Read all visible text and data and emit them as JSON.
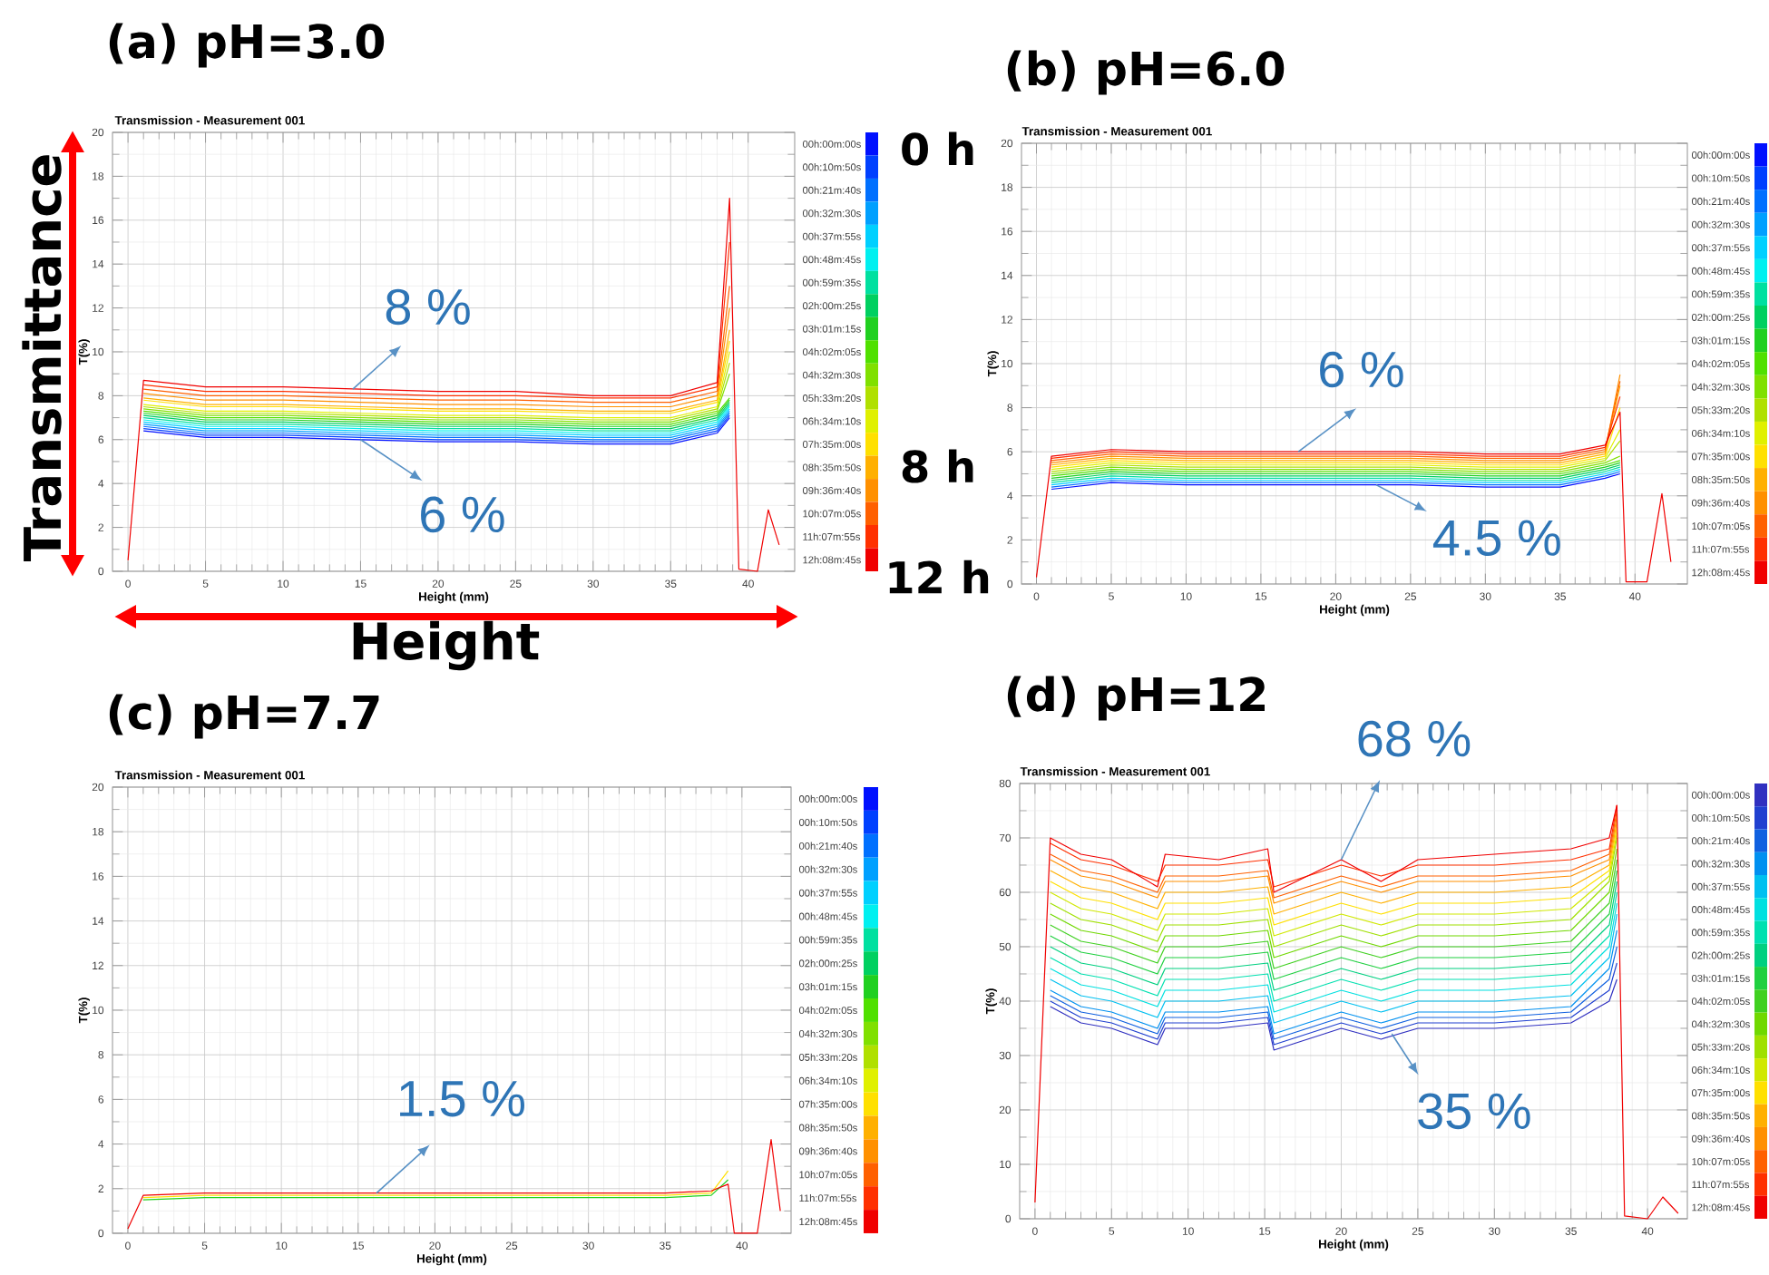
{
  "chart_data": [
    {
      "type": "line",
      "title": "(a) pH=3.0",
      "subtitle": "Transmission - Measurement 001",
      "xlabel": "Height (mm)",
      "ylabel": "T(%)",
      "xlim": [
        -1,
        43
      ],
      "ylim": [
        0,
        20
      ],
      "xticks": [
        0,
        5,
        10,
        15,
        20,
        25,
        30,
        35,
        40
      ],
      "yticks": [
        0,
        2,
        4,
        6,
        8,
        10,
        12,
        14,
        16,
        18,
        20
      ],
      "grid": true,
      "legend": "right",
      "x": [
        0,
        1,
        5,
        10,
        15,
        20,
        25,
        30,
        35,
        38,
        38.8,
        39.4,
        40.6,
        41.3,
        42
      ],
      "annotations": [
        "Transmittance",
        "Height",
        "0 h",
        "8 h",
        "12 h",
        {
          "text": "8 %",
          "x": 14.5,
          "y": 8.3
        },
        {
          "text": "6 %",
          "x": 15,
          "y": 6.0
        }
      ],
      "series": [
        {
          "name": "00h:00m:00s",
          "color": "#0010ff",
          "values": [
            null,
            6.4,
            6.1,
            6.1,
            6.0,
            5.9,
            5.9,
            5.8,
            5.8,
            6.3,
            7.0,
            null,
            null,
            null,
            null
          ]
        },
        {
          "name": "00h:10m:50s",
          "color": "#0040ff",
          "values": [
            null,
            6.5,
            6.2,
            6.2,
            6.1,
            6.0,
            6.0,
            5.9,
            5.9,
            6.4,
            7.1,
            null,
            null,
            null,
            null
          ]
        },
        {
          "name": "00h:21m:40s",
          "color": "#0070ff",
          "values": [
            null,
            6.6,
            6.3,
            6.3,
            6.2,
            6.1,
            6.1,
            6.0,
            6.0,
            6.5,
            7.2,
            null,
            null,
            null,
            null
          ]
        },
        {
          "name": "00h:32m:30s",
          "color": "#00a0ff",
          "values": [
            null,
            6.7,
            6.4,
            6.4,
            6.3,
            6.2,
            6.2,
            6.1,
            6.1,
            6.6,
            7.3,
            null,
            null,
            null,
            null
          ]
        },
        {
          "name": "00h:37m:55s",
          "color": "#00d0ff",
          "values": [
            null,
            6.8,
            6.5,
            6.5,
            6.4,
            6.3,
            6.3,
            6.2,
            6.2,
            6.7,
            7.4,
            null,
            null,
            null,
            null
          ]
        },
        {
          "name": "00h:48m:45s",
          "color": "#00f0f0",
          "values": [
            null,
            6.9,
            6.6,
            6.6,
            6.5,
            6.4,
            6.4,
            6.3,
            6.3,
            6.8,
            7.5,
            null,
            null,
            null,
            null
          ]
        },
        {
          "name": "00h:59m:35s",
          "color": "#00e0a0",
          "values": [
            null,
            7.0,
            6.7,
            6.7,
            6.6,
            6.5,
            6.5,
            6.4,
            6.4,
            6.9,
            7.6,
            null,
            null,
            null,
            null
          ]
        },
        {
          "name": "02h:00m:25s",
          "color": "#00d060",
          "values": [
            null,
            7.1,
            6.8,
            6.8,
            6.7,
            6.6,
            6.6,
            6.5,
            6.5,
            7.0,
            7.7,
            null,
            null,
            null,
            null
          ]
        },
        {
          "name": "03h:01m:15s",
          "color": "#20d020",
          "values": [
            null,
            7.2,
            6.9,
            6.9,
            6.8,
            6.7,
            6.7,
            6.6,
            6.6,
            7.1,
            7.8,
            null,
            null,
            null,
            null
          ]
        },
        {
          "name": "04h:02m:05s",
          "color": "#50e000",
          "values": [
            null,
            7.3,
            7.0,
            7.0,
            6.9,
            6.8,
            6.8,
            6.7,
            6.7,
            7.2,
            7.9,
            null,
            null,
            null,
            null
          ]
        },
        {
          "name": "04h:32m:30s",
          "color": "#80e000",
          "values": [
            null,
            7.4,
            7.1,
            7.1,
            7.0,
            6.9,
            6.9,
            6.8,
            6.8,
            7.3,
            9.0,
            null,
            null,
            null,
            null
          ]
        },
        {
          "name": "05h:33m:20s",
          "color": "#b0e000",
          "values": [
            null,
            7.5,
            7.2,
            7.2,
            7.1,
            7.0,
            7.0,
            6.9,
            6.9,
            7.4,
            9.5,
            null,
            null,
            null,
            null
          ]
        },
        {
          "name": "06h:34m:10s",
          "color": "#e0f000",
          "values": [
            null,
            7.6,
            7.3,
            7.3,
            7.2,
            7.1,
            7.1,
            7.0,
            7.0,
            7.5,
            10.0,
            null,
            null,
            null,
            null
          ]
        },
        {
          "name": "07h:35m:00s",
          "color": "#ffe000",
          "values": [
            null,
            7.8,
            7.5,
            7.5,
            7.4,
            7.3,
            7.3,
            7.2,
            7.2,
            7.7,
            10.5,
            null,
            null,
            null,
            null
          ]
        },
        {
          "name": "08h:35m:50s",
          "color": "#ffb000",
          "values": [
            null,
            7.9,
            7.6,
            7.6,
            7.5,
            7.4,
            7.4,
            7.3,
            7.3,
            7.8,
            11.0,
            null,
            null,
            null,
            null
          ]
        },
        {
          "name": "09h:36m:40s",
          "color": "#ff9000",
          "values": [
            null,
            8.1,
            7.8,
            7.8,
            7.7,
            7.6,
            7.6,
            7.5,
            7.5,
            8.0,
            12.0,
            null,
            null,
            null,
            null
          ]
        },
        {
          "name": "10h:07m:05s",
          "color": "#ff6000",
          "values": [
            null,
            8.3,
            8.0,
            8.0,
            7.9,
            7.8,
            7.8,
            7.7,
            7.7,
            8.2,
            13.0,
            null,
            null,
            null,
            null
          ]
        },
        {
          "name": "11h:07m:55s",
          "color": "#ff3000",
          "values": [
            null,
            8.5,
            8.2,
            8.2,
            8.1,
            8.0,
            8.0,
            7.9,
            7.9,
            8.4,
            15.0,
            null,
            null,
            null,
            null
          ]
        },
        {
          "name": "12h:08m:45s",
          "color": "#f00000",
          "values": [
            0.5,
            8.7,
            8.4,
            8.4,
            8.3,
            8.2,
            8.2,
            8.0,
            8.0,
            8.6,
            17.0,
            0.1,
            0,
            2.8,
            1.2
          ]
        }
      ]
    },
    {
      "type": "line",
      "title": "(b) pH=6.0",
      "subtitle": "Transmission - Measurement 001",
      "xlabel": "Height (mm)",
      "ylabel": "T(%)",
      "xlim": [
        -1,
        43.5
      ],
      "ylim": [
        0,
        20
      ],
      "xticks": [
        0,
        5,
        10,
        15,
        20,
        25,
        30,
        35,
        40
      ],
      "yticks": [
        0,
        2,
        4,
        6,
        8,
        10,
        12,
        14,
        16,
        18,
        20
      ],
      "grid": true,
      "legend": "right",
      "x": [
        0,
        1,
        5,
        10,
        15,
        20,
        25,
        30,
        35,
        38,
        39,
        39.4,
        40.8,
        41.8,
        42.4
      ],
      "annotations": [
        {
          "text": "6 %",
          "x": 17.5,
          "y": 6.0
        },
        {
          "text": "4.5 %",
          "x": 22.7,
          "y": 4.5
        }
      ],
      "series": [
        {
          "name": "00h:00m:00s",
          "color": "#0010ff",
          "values": [
            null,
            4.3,
            4.6,
            4.5,
            4.5,
            4.5,
            4.5,
            4.4,
            4.4,
            4.8,
            5.0,
            null,
            null,
            null,
            null
          ]
        },
        {
          "name": "00h:10m:50s",
          "color": "#0040ff",
          "values": [
            null,
            null,
            null,
            null,
            null,
            null,
            null,
            null,
            null,
            null,
            null,
            null,
            null,
            null,
            null
          ]
        },
        {
          "name": "00h:21m:40s",
          "color": "#0070ff",
          "values": [
            null,
            4.4,
            4.7,
            4.6,
            4.6,
            4.6,
            4.6,
            4.5,
            4.5,
            4.9,
            5.1,
            null,
            null,
            null,
            null
          ]
        },
        {
          "name": "00h:32m:30s",
          "color": "#00a0ff",
          "values": [
            null,
            null,
            null,
            null,
            null,
            null,
            null,
            null,
            null,
            null,
            null,
            null,
            null,
            null,
            null
          ]
        },
        {
          "name": "00h:37m:55s",
          "color": "#00d0ff",
          "values": [
            null,
            4.5,
            4.8,
            4.7,
            4.7,
            4.7,
            4.7,
            4.6,
            4.6,
            5.0,
            5.2,
            null,
            null,
            null,
            null
          ]
        },
        {
          "name": "00h:48m:45s",
          "color": "#00f0f0",
          "values": [
            null,
            null,
            null,
            null,
            null,
            null,
            null,
            null,
            null,
            null,
            null,
            null,
            null,
            null,
            null
          ]
        },
        {
          "name": "00h:59m:35s",
          "color": "#00e0a0",
          "values": [
            null,
            4.6,
            4.9,
            4.8,
            4.8,
            4.8,
            4.8,
            4.7,
            4.7,
            5.1,
            5.3,
            null,
            null,
            null,
            null
          ]
        },
        {
          "name": "02h:00m:25s",
          "color": "#00d060",
          "values": [
            null,
            4.7,
            5.0,
            4.9,
            4.9,
            4.9,
            4.9,
            4.8,
            4.8,
            5.2,
            5.4,
            null,
            null,
            null,
            null
          ]
        },
        {
          "name": "03h:01m:15s",
          "color": "#20d020",
          "values": [
            null,
            4.8,
            5.1,
            5.0,
            5.0,
            5.0,
            5.0,
            4.9,
            4.9,
            5.3,
            5.5,
            null,
            null,
            null,
            null
          ]
        },
        {
          "name": "04h:02m:05s",
          "color": "#50e000",
          "values": [
            null,
            4.9,
            5.2,
            5.1,
            5.1,
            5.1,
            5.1,
            5.0,
            5.0,
            5.4,
            5.6,
            null,
            null,
            null,
            null
          ]
        },
        {
          "name": "04h:32m:30s",
          "color": "#80e000",
          "values": [
            null,
            5.0,
            5.3,
            5.2,
            5.2,
            5.2,
            5.2,
            5.1,
            5.1,
            5.5,
            5.8,
            null,
            null,
            null,
            null
          ]
        },
        {
          "name": "05h:33m:20s",
          "color": "#b0e000",
          "values": [
            null,
            5.1,
            5.4,
            5.3,
            5.3,
            5.3,
            5.3,
            5.2,
            5.2,
            5.6,
            6.5,
            null,
            null,
            null,
            null
          ]
        },
        {
          "name": "06h:34m:10s",
          "color": "#e0f000",
          "values": [
            null,
            5.2,
            5.5,
            5.4,
            5.4,
            5.4,
            5.4,
            5.3,
            5.3,
            5.7,
            7.0,
            null,
            null,
            null,
            null
          ]
        },
        {
          "name": "07h:35m:00s",
          "color": "#ffe000",
          "values": [
            null,
            5.3,
            5.6,
            5.5,
            5.5,
            5.5,
            5.5,
            5.4,
            5.4,
            5.8,
            8.0,
            null,
            null,
            null,
            null
          ]
        },
        {
          "name": "08h:35m:50s",
          "color": "#ffb000",
          "values": [
            null,
            5.4,
            5.7,
            5.6,
            5.6,
            5.6,
            5.6,
            5.5,
            5.5,
            5.9,
            9.0,
            null,
            null,
            null,
            null
          ]
        },
        {
          "name": "09h:36m:40s",
          "color": "#ff9000",
          "values": [
            null,
            5.5,
            5.8,
            5.7,
            5.7,
            5.7,
            5.7,
            5.6,
            5.6,
            6.0,
            9.5,
            null,
            null,
            null,
            null
          ]
        },
        {
          "name": "10h:07m:05s",
          "color": "#ff6000",
          "values": [
            null,
            5.6,
            5.9,
            5.8,
            5.8,
            5.8,
            5.8,
            5.7,
            5.7,
            6.1,
            9.2,
            null,
            null,
            null,
            null
          ]
        },
        {
          "name": "11h:07m:55s",
          "color": "#ff3000",
          "values": [
            null,
            5.7,
            6.0,
            5.9,
            5.9,
            5.9,
            5.9,
            5.8,
            5.8,
            6.2,
            8.5,
            null,
            null,
            null,
            null
          ]
        },
        {
          "name": "12h:08m:45s",
          "color": "#f00000",
          "values": [
            0.3,
            5.8,
            6.1,
            6.0,
            6.0,
            6.0,
            6.0,
            5.9,
            5.9,
            6.3,
            7.8,
            0.1,
            0.1,
            4.1,
            1.0
          ]
        }
      ]
    },
    {
      "type": "line",
      "title": "(c) pH=7.7",
      "subtitle": "Transmission - Measurement 001",
      "xlabel": "Height (mm)",
      "ylabel": "T(%)",
      "xlim": [
        -1,
        43.2
      ],
      "ylim": [
        0,
        20
      ],
      "xticks": [
        0,
        5,
        10,
        15,
        20,
        25,
        30,
        35,
        40
      ],
      "yticks": [
        0,
        2,
        4,
        6,
        8,
        10,
        12,
        14,
        16,
        18,
        20
      ],
      "grid": true,
      "legend": "right",
      "x": [
        0,
        1,
        5,
        10,
        15,
        20,
        25,
        30,
        35,
        38,
        39.1,
        39.5,
        41,
        41.9,
        42.5
      ],
      "annotations": [
        {
          "text": "1.5 %",
          "x": 16.2,
          "y": 1.8
        }
      ],
      "series": [
        {
          "name": "00h:00m:00s",
          "color": "#0010ff",
          "values": [
            null,
            null,
            null,
            null,
            null,
            null,
            null,
            null,
            null,
            null,
            null,
            null,
            null,
            null,
            null
          ]
        },
        {
          "name": "00h:10m:50s",
          "color": "#0040ff",
          "values": [
            null,
            null,
            null,
            null,
            null,
            null,
            null,
            null,
            null,
            null,
            null,
            null,
            null,
            null,
            null
          ]
        },
        {
          "name": "00h:21m:40s",
          "color": "#0070ff",
          "values": [
            null,
            null,
            null,
            null,
            null,
            null,
            null,
            null,
            null,
            null,
            null,
            null,
            null,
            null,
            null
          ]
        },
        {
          "name": "00h:32m:30s",
          "color": "#00a0ff",
          "values": [
            null,
            null,
            null,
            null,
            null,
            null,
            null,
            null,
            null,
            null,
            null,
            null,
            null,
            null,
            null
          ]
        },
        {
          "name": "00h:37m:55s",
          "color": "#00d0ff",
          "values": [
            null,
            null,
            null,
            null,
            null,
            null,
            null,
            null,
            null,
            null,
            null,
            null,
            null,
            null,
            null
          ]
        },
        {
          "name": "00h:48m:45s",
          "color": "#00f0f0",
          "values": [
            null,
            null,
            null,
            null,
            null,
            null,
            null,
            null,
            null,
            null,
            null,
            null,
            null,
            null,
            null
          ]
        },
        {
          "name": "00h:59m:35s",
          "color": "#00e0a0",
          "values": [
            null,
            null,
            null,
            null,
            null,
            null,
            null,
            null,
            null,
            null,
            null,
            null,
            null,
            null,
            null
          ]
        },
        {
          "name": "02h:00m:25s",
          "color": "#00d060",
          "values": [
            null,
            null,
            null,
            null,
            null,
            null,
            null,
            null,
            null,
            null,
            null,
            null,
            null,
            null,
            null
          ]
        },
        {
          "name": "03h:01m:15s",
          "color": "#20d020",
          "values": [
            null,
            1.5,
            1.6,
            1.6,
            1.6,
            1.6,
            1.6,
            1.6,
            1.6,
            1.7,
            2.4,
            null,
            null,
            null,
            null
          ]
        },
        {
          "name": "04h:02m:05s",
          "color": "#50e000",
          "values": [
            null,
            null,
            null,
            null,
            null,
            null,
            null,
            null,
            null,
            null,
            null,
            null,
            null,
            null,
            null
          ]
        },
        {
          "name": "04h:32m:30s",
          "color": "#80e000",
          "values": [
            null,
            null,
            null,
            null,
            null,
            null,
            null,
            null,
            null,
            null,
            null,
            null,
            null,
            null,
            null
          ]
        },
        {
          "name": "05h:33m:20s",
          "color": "#b0e000",
          "values": [
            null,
            null,
            null,
            null,
            null,
            null,
            null,
            null,
            null,
            null,
            null,
            null,
            null,
            null,
            null
          ]
        },
        {
          "name": "06h:34m:10s",
          "color": "#e0f000",
          "values": [
            null,
            null,
            null,
            null,
            null,
            null,
            null,
            null,
            null,
            null,
            null,
            null,
            null,
            null,
            null
          ]
        },
        {
          "name": "07h:35m:00s",
          "color": "#ffe000",
          "values": [
            null,
            1.6,
            1.7,
            1.7,
            1.7,
            1.7,
            1.7,
            1.7,
            1.7,
            1.8,
            2.8,
            null,
            null,
            null,
            null
          ]
        },
        {
          "name": "08h:35m:50s",
          "color": "#ffb000",
          "values": [
            null,
            null,
            null,
            null,
            null,
            null,
            null,
            null,
            null,
            null,
            null,
            null,
            null,
            null,
            null
          ]
        },
        {
          "name": "09h:36m:40s",
          "color": "#ff9000",
          "values": [
            null,
            null,
            null,
            null,
            null,
            null,
            null,
            null,
            null,
            null,
            null,
            null,
            null,
            null,
            null
          ]
        },
        {
          "name": "10h:07m:05s",
          "color": "#ff6000",
          "values": [
            null,
            null,
            null,
            null,
            null,
            null,
            null,
            null,
            null,
            null,
            null,
            null,
            null,
            null,
            null
          ]
        },
        {
          "name": "11h:07m:55s",
          "color": "#ff3000",
          "values": [
            null,
            null,
            null,
            null,
            null,
            null,
            null,
            null,
            null,
            null,
            null,
            null,
            null,
            null,
            null
          ]
        },
        {
          "name": "12h:08m:45s",
          "color": "#f00000",
          "values": [
            0.2,
            1.7,
            1.8,
            1.8,
            1.8,
            1.8,
            1.8,
            1.8,
            1.8,
            1.9,
            2.2,
            0,
            0,
            4.2,
            1.0
          ]
        }
      ]
    },
    {
      "type": "line",
      "title": "(d) pH=12",
      "subtitle": "Transmission - Measurement 001",
      "xlabel": "Height (mm)",
      "ylabel": "T(%)",
      "xlim": [
        -1,
        42.6
      ],
      "ylim": [
        0,
        80
      ],
      "xticks": [
        0,
        5,
        10,
        15,
        20,
        25,
        30,
        35,
        40
      ],
      "yticks": [
        0,
        10,
        20,
        30,
        40,
        50,
        60,
        70,
        80
      ],
      "grid": true,
      "legend": "right",
      "x": [
        0,
        1,
        3,
        5,
        8,
        8.5,
        12,
        15.2,
        15.6,
        20,
        22.6,
        25,
        30,
        35,
        37.5,
        38,
        38.5,
        40,
        41,
        42
      ],
      "annotations": [
        {
          "text": "68 %",
          "x": 20,
          "y": 66
        },
        {
          "text": "35 %",
          "x": 23.3,
          "y": 34
        }
      ],
      "series": [
        {
          "name": "00h:00m:00s",
          "color": "#3030c0",
          "values": [
            null,
            39,
            36,
            35,
            32,
            35,
            35,
            36,
            31,
            35,
            33,
            35,
            35,
            36,
            40,
            44,
            null,
            null,
            null,
            null
          ]
        },
        {
          "name": "00h:10m:50s",
          "color": "#2040d0",
          "values": [
            null,
            40,
            37,
            36,
            33,
            36,
            36,
            37,
            32,
            36,
            34,
            36,
            36,
            37,
            42,
            47,
            null,
            null,
            null,
            null
          ]
        },
        {
          "name": "00h:21m:40s",
          "color": "#1060e0",
          "values": [
            null,
            41,
            38,
            37,
            34,
            37,
            37,
            38,
            33,
            37,
            35,
            37,
            37,
            38,
            44,
            50,
            null,
            null,
            null,
            null
          ]
        },
        {
          "name": "00h:32m:30s",
          "color": "#0090f0",
          "values": [
            null,
            42,
            39,
            38,
            35,
            38,
            38,
            39,
            34,
            38,
            36,
            38,
            38,
            39,
            46,
            53,
            null,
            null,
            null,
            null
          ]
        },
        {
          "name": "00h:37m:55s",
          "color": "#00c0f0",
          "values": [
            null,
            44,
            41,
            40,
            37,
            40,
            40,
            41,
            36,
            40,
            38,
            40,
            40,
            41,
            48,
            56,
            null,
            null,
            null,
            null
          ]
        },
        {
          "name": "00h:48m:45s",
          "color": "#00e0e0",
          "values": [
            null,
            46,
            43,
            42,
            39,
            42,
            42,
            43,
            38,
            42,
            40,
            42,
            42,
            43,
            50,
            58,
            null,
            null,
            null,
            null
          ]
        },
        {
          "name": "00h:59m:35s",
          "color": "#00e0b0",
          "values": [
            null,
            48,
            45,
            44,
            41,
            44,
            44,
            45,
            40,
            44,
            42,
            44,
            44,
            45,
            52,
            60,
            null,
            null,
            null,
            null
          ]
        },
        {
          "name": "02h:00m:25s",
          "color": "#00d080",
          "values": [
            null,
            50,
            47,
            46,
            43,
            46,
            46,
            47,
            42,
            46,
            44,
            46,
            46,
            47,
            54,
            62,
            null,
            null,
            null,
            null
          ]
        },
        {
          "name": "03h:01m:15s",
          "color": "#20d040",
          "values": [
            null,
            52,
            49,
            48,
            45,
            48,
            48,
            49,
            44,
            48,
            46,
            48,
            48,
            49,
            56,
            64,
            null,
            null,
            null,
            null
          ]
        },
        {
          "name": "04h:02m:05s",
          "color": "#40d020",
          "values": [
            null,
            54,
            51,
            50,
            47,
            50,
            50,
            51,
            46,
            50,
            48,
            50,
            50,
            51,
            58,
            66,
            null,
            null,
            null,
            null
          ]
        },
        {
          "name": "04h:32m:30s",
          "color": "#70d800",
          "values": [
            null,
            56,
            53,
            52,
            49,
            52,
            52,
            53,
            48,
            52,
            50,
            52,
            52,
            53,
            60,
            68,
            null,
            null,
            null,
            null
          ]
        },
        {
          "name": "05h:33m:20s",
          "color": "#a0e000",
          "values": [
            null,
            58,
            55,
            54,
            51,
            54,
            54,
            55,
            50,
            54,
            52,
            54,
            54,
            55,
            62,
            70,
            null,
            null,
            null,
            null
          ]
        },
        {
          "name": "06h:34m:10s",
          "color": "#d0e800",
          "values": [
            null,
            60,
            57,
            56,
            53,
            56,
            56,
            57,
            52,
            56,
            54,
            56,
            56,
            57,
            63,
            71,
            null,
            null,
            null,
            null
          ]
        },
        {
          "name": "07h:35m:00s",
          "color": "#ffe000",
          "values": [
            null,
            62,
            59,
            58,
            55,
            58,
            58,
            59,
            54,
            58,
            56,
            58,
            58,
            59,
            64,
            72,
            null,
            null,
            null,
            null
          ]
        },
        {
          "name": "08h:35m:50s",
          "color": "#ffb000",
          "values": [
            null,
            64,
            61,
            60,
            57,
            60,
            60,
            61,
            56,
            60,
            58,
            60,
            60,
            61,
            65,
            73,
            null,
            null,
            null,
            null
          ]
        },
        {
          "name": "09h:36m:40s",
          "color": "#ff9000",
          "values": [
            null,
            66,
            63,
            62,
            59,
            62,
            62,
            63,
            58,
            62,
            60,
            62,
            62,
            63,
            66,
            74,
            null,
            null,
            null,
            null
          ]
        },
        {
          "name": "10h:07m:05s",
          "color": "#ff6000",
          "values": [
            null,
            67,
            64,
            63,
            60,
            63,
            63,
            64,
            59,
            63,
            61,
            63,
            63,
            64,
            67,
            75,
            null,
            null,
            null,
            null
          ]
        },
        {
          "name": "11h:07m:55s",
          "color": "#ff3000",
          "values": [
            null,
            69,
            66,
            65,
            62,
            65,
            65,
            66,
            61,
            65,
            63,
            65,
            65,
            66,
            68,
            76,
            null,
            null,
            null,
            null
          ]
        },
        {
          "name": "12h:08m:45s",
          "color": "#f00000",
          "values": [
            3,
            70,
            67,
            66,
            61,
            67,
            66,
            68,
            60,
            66,
            62,
            66,
            67,
            68,
            70,
            76,
            0.5,
            0,
            4,
            1
          ]
        }
      ]
    }
  ]
}
